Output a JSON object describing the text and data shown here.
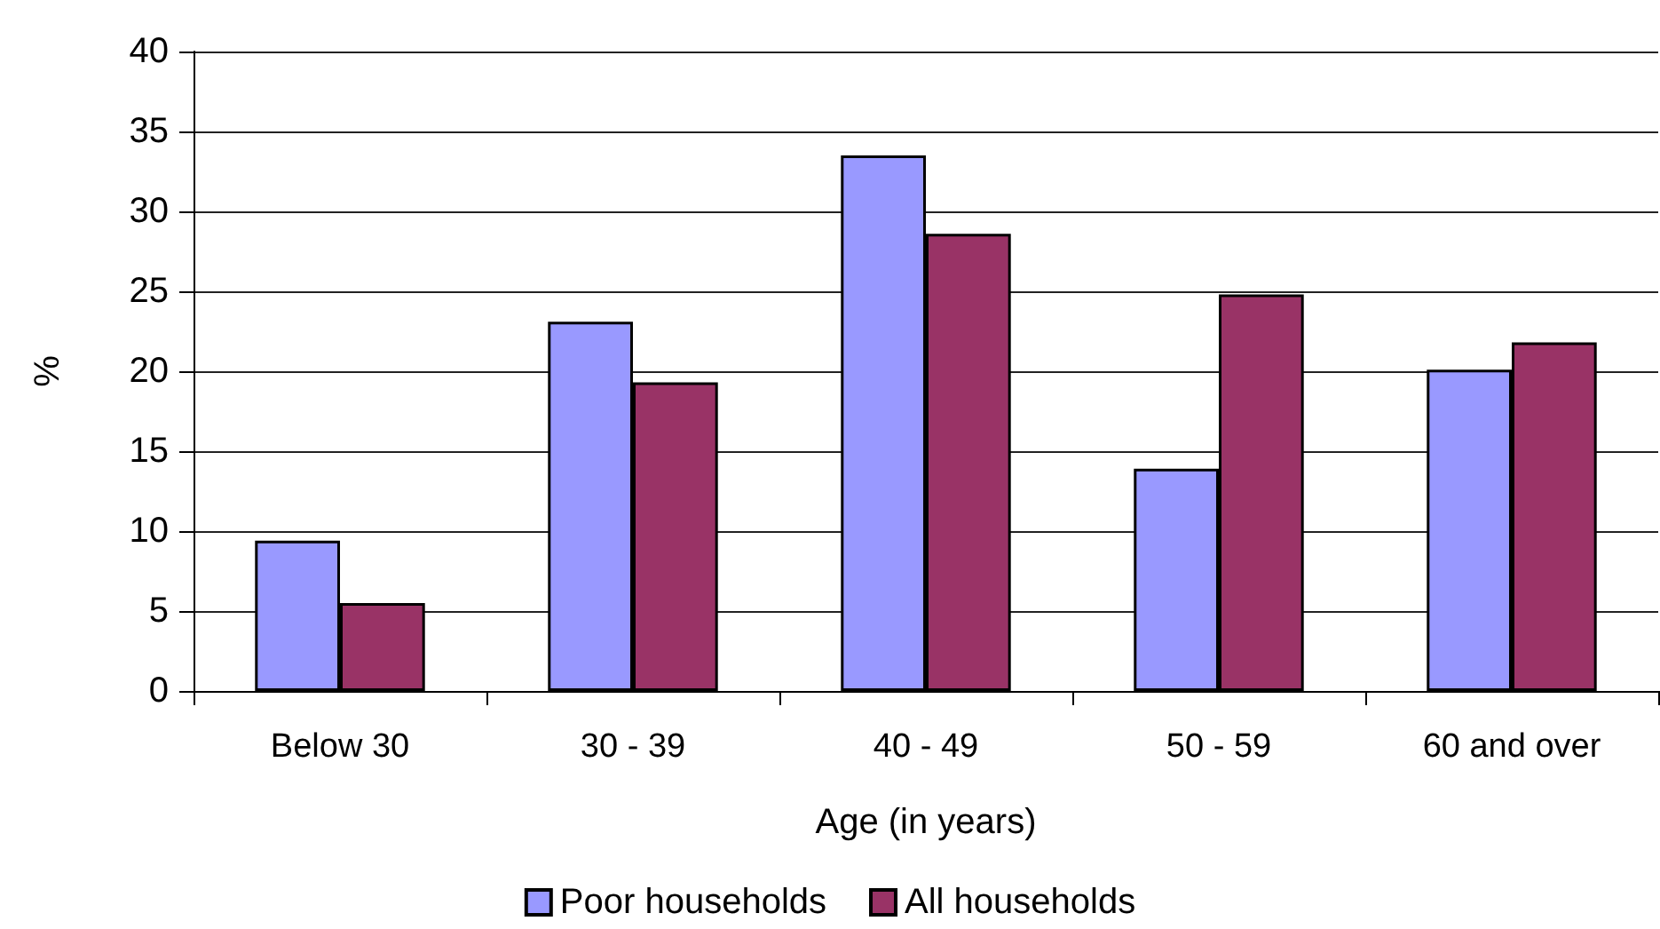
{
  "chart_data": {
    "type": "bar",
    "xlabel": "Age (in years)",
    "ylabel": "%",
    "categories": [
      "Below 30",
      "30 - 39",
      "40 - 49",
      "50 - 59",
      "60 and over"
    ],
    "series": [
      {
        "name": "Poor households",
        "color": "#9999ff",
        "values": [
          9.4,
          23.1,
          33.5,
          13.9,
          20.1
        ]
      },
      {
        "name": "All households",
        "color": "#993366",
        "values": [
          5.5,
          19.3,
          28.6,
          24.8,
          21.8
        ]
      }
    ],
    "ylim": [
      0,
      40
    ],
    "yticks": [
      0,
      5,
      10,
      15,
      20,
      25,
      30,
      35,
      40
    ],
    "grid": "y",
    "legend": "bottom"
  }
}
